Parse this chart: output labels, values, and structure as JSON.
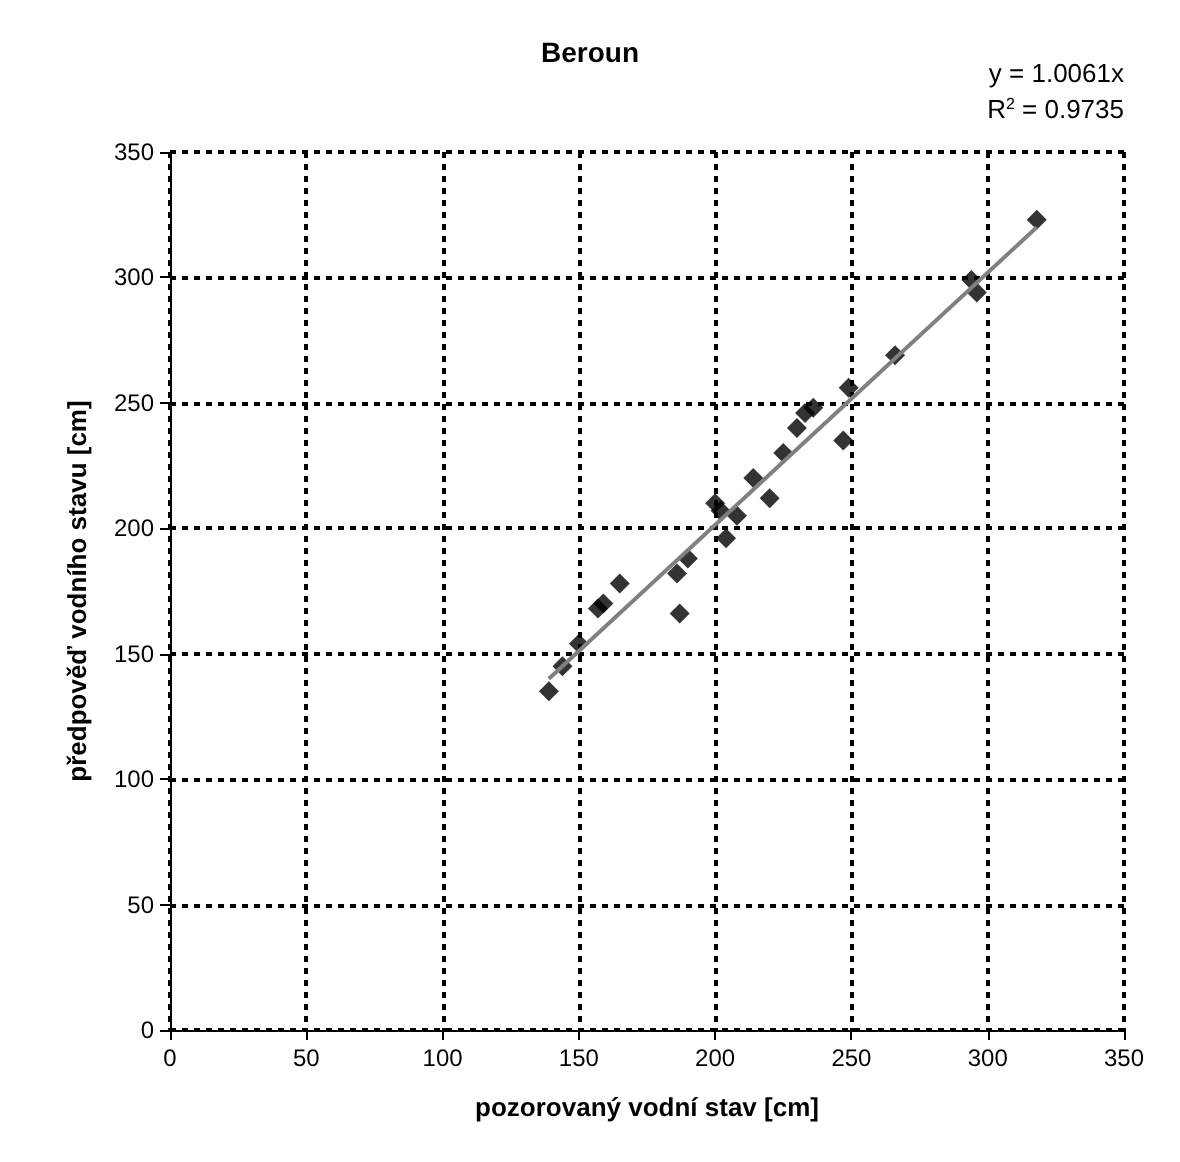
{
  "chart_data": {
    "type": "scatter",
    "title": "Beroun",
    "xlabel": "pozorovaný vodní stav [cm]",
    "ylabel": "předpověď vodního stavu [cm]",
    "annotations": [
      "y = 1.0061x",
      "R$^{2}$ = 0.9735"
    ],
    "xlim": [
      0,
      350
    ],
    "ylim": [
      0,
      350
    ],
    "xticks": [
      0,
      50,
      100,
      150,
      200,
      250,
      300,
      350
    ],
    "yticks": [
      0,
      50,
      100,
      150,
      200,
      250,
      300,
      350
    ],
    "grid": true,
    "marker": "diamond",
    "series": [
      {
        "color": "#000000",
        "x": [
          139,
          144,
          150,
          157,
          159,
          165,
          186,
          187,
          190,
          200,
          202,
          204,
          208,
          214,
          220,
          225,
          230,
          233,
          236,
          247,
          249,
          266,
          294,
          296,
          318
        ],
        "values": [
          135,
          145,
          154,
          168,
          170,
          178,
          182,
          166,
          188,
          210,
          207,
          196,
          205,
          220,
          212,
          230,
          240,
          246,
          248,
          235,
          256,
          269,
          299,
          294,
          323
        ]
      },
      {
        "type": "line",
        "color": "#808080",
        "marker": "none",
        "line_style": "solid",
        "x": [
          139,
          318
        ],
        "values": [
          140,
          320
        ]
      }
    ]
  }
}
